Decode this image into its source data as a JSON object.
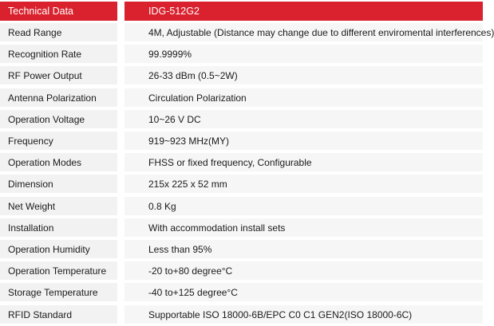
{
  "header": {
    "label": "Technical Data",
    "value": "IDG-512G2"
  },
  "rows": [
    {
      "label": "Read Range",
      "value": "4M, Adjustable (Distance may change due to different enviromental interferences)"
    },
    {
      "label": "Recognition Rate",
      "value": "99.9999%"
    },
    {
      "label": "RF Power Output",
      "value": "26-33 dBm (0.5~2W)"
    },
    {
      "label": "Antenna Polarization",
      "value": "Circulation Polarization"
    },
    {
      "label": "Operation Voltage",
      "value": "10~26 V DC"
    },
    {
      "label": "Frequency",
      "value": "919~923 MHz(MY)"
    },
    {
      "label": "Operation Modes",
      "value": "FHSS or fixed frequency, Configurable"
    },
    {
      "label": "Dimension",
      "value": "215x 225 x 52 mm"
    },
    {
      "label": "Net Weight",
      "value": "0.8 Kg"
    },
    {
      "label": "Installation",
      "value": "With accommodation install sets"
    },
    {
      "label": "Operation Humidity",
      "value": "Less than 95%"
    },
    {
      "label": "Operation Temperature",
      "value": "-20 to+80 degree°C"
    },
    {
      "label": "Storage Temperature",
      "value": "-40 to+125 degree°C"
    },
    {
      "label": "RFID Standard",
      "value": "Supportable ISO 18000-6B/EPC C0 C1 GEN2(ISO 18000-6C)"
    }
  ],
  "colors": {
    "header_bg": "#d9222e",
    "header_text": "#ffffff",
    "row_bg": "#f2f2f2"
  }
}
